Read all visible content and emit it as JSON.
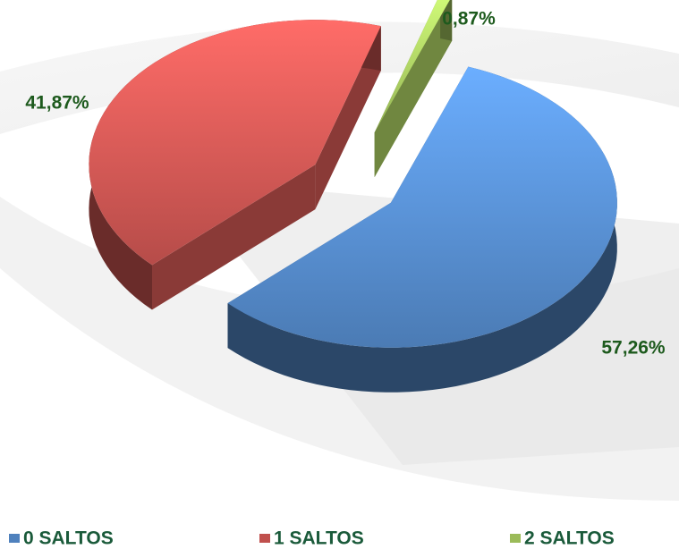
{
  "chart_data": {
    "type": "pie3d",
    "categories": [
      "0 SALTOS",
      "1 SALTOS",
      "2 SALTOS"
    ],
    "values": [
      57.26,
      41.87,
      0.87
    ],
    "value_labels": [
      "57,26%",
      "41,87%",
      "0,87%"
    ],
    "colors": [
      "#4f81bd",
      "#c0504d",
      "#9bbb59"
    ],
    "legend": "bottom"
  }
}
